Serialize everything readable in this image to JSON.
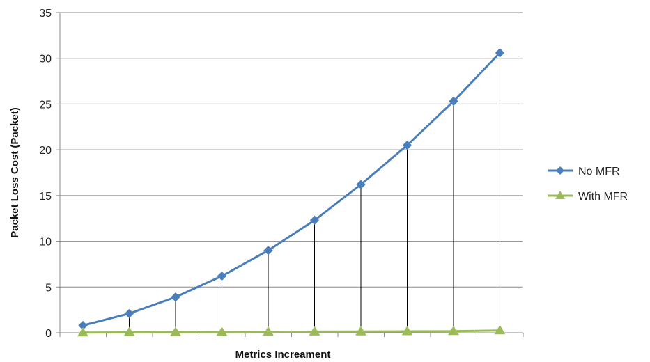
{
  "chart_data": {
    "type": "line",
    "title": "",
    "xlabel": "Metrics Increament",
    "ylabel": "Packet Loss Cost (Packet)",
    "ylim": [
      0,
      35
    ],
    "yticks": [
      0,
      5,
      10,
      15,
      20,
      25,
      30,
      35
    ],
    "grid": "horizontal",
    "legend_position": "right",
    "x": [
      1,
      2,
      3,
      4,
      5,
      6,
      7,
      8,
      9,
      10
    ],
    "drop_lines": true,
    "series": [
      {
        "name": "No MFR",
        "color": "#4a7ebb",
        "marker": "diamond",
        "values": [
          0.8,
          2.1,
          3.9,
          6.2,
          9.0,
          12.3,
          16.2,
          20.5,
          25.3,
          30.6
        ]
      },
      {
        "name": "With MFR",
        "color": "#9bbb59",
        "marker": "triangle",
        "values": [
          0.02,
          0.05,
          0.06,
          0.07,
          0.1,
          0.12,
          0.13,
          0.15,
          0.17,
          0.25
        ]
      }
    ]
  }
}
